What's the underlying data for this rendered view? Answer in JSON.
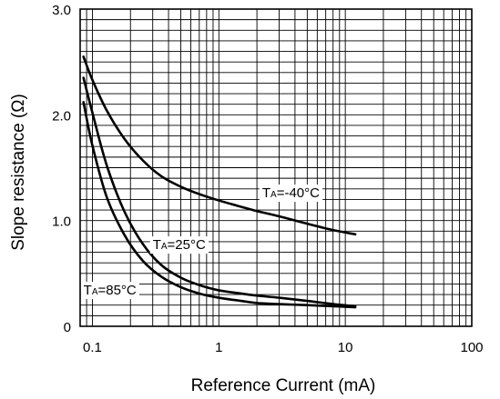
{
  "chart_data": {
    "type": "line",
    "title": "",
    "xlabel": "Reference Current (mA)",
    "ylabel": "Slope resistance  (Ω)",
    "x_scale": "log",
    "xlim": [
      0.08,
      100
    ],
    "ylim": [
      0,
      3.0
    ],
    "x_ticks": [
      {
        "value": 0.1,
        "label": "0.1"
      },
      {
        "value": 1,
        "label": "1"
      },
      {
        "value": 10,
        "label": "10"
      },
      {
        "value": 100,
        "label": "100"
      }
    ],
    "y_ticks": [
      {
        "value": 0,
        "label": "0"
      },
      {
        "value": 1.0,
        "label": "1.0"
      },
      {
        "value": 2.0,
        "label": "2.0"
      },
      {
        "value": 3.0,
        "label": "3.0"
      }
    ],
    "grid": true,
    "line_color": "#000000",
    "series": [
      {
        "label_main": "T",
        "label_sub": "A",
        "label_rest": "=-40°C",
        "label_anchor": {
          "x": 2.2,
          "y": 1.22
        },
        "x": [
          0.085,
          0.1,
          0.13,
          0.18,
          0.25,
          0.35,
          0.5,
          0.7,
          1.0,
          1.5,
          2.0,
          3.0,
          5.0,
          8.0,
          12.0
        ],
        "y": [
          2.55,
          2.33,
          2.04,
          1.77,
          1.57,
          1.42,
          1.32,
          1.25,
          1.19,
          1.13,
          1.09,
          1.04,
          0.97,
          0.91,
          0.87
        ]
      },
      {
        "label_main": "T",
        "label_sub": "A",
        "label_rest": "=25°C",
        "label_anchor": {
          "x": 0.3,
          "y": 0.73
        },
        "x": [
          0.085,
          0.1,
          0.13,
          0.18,
          0.25,
          0.35,
          0.5,
          0.7,
          1.0,
          1.5,
          2.0,
          3.0,
          5.0,
          8.0,
          12.0
        ],
        "y": [
          2.35,
          2.02,
          1.52,
          1.08,
          0.78,
          0.58,
          0.46,
          0.39,
          0.34,
          0.31,
          0.29,
          0.27,
          0.24,
          0.21,
          0.19
        ]
      },
      {
        "label_main": "T",
        "label_sub": "A",
        "label_rest": "=85°C",
        "label_anchor": {
          "x": 0.085,
          "y": 0.3
        },
        "x": [
          0.085,
          0.1,
          0.13,
          0.18,
          0.25,
          0.35,
          0.5,
          0.7,
          1.0,
          1.5,
          2.0,
          3.0,
          5.0,
          8.0,
          12.0
        ],
        "y": [
          2.12,
          1.71,
          1.22,
          0.86,
          0.62,
          0.47,
          0.37,
          0.31,
          0.27,
          0.24,
          0.22,
          0.21,
          0.2,
          0.19,
          0.18
        ]
      }
    ]
  }
}
